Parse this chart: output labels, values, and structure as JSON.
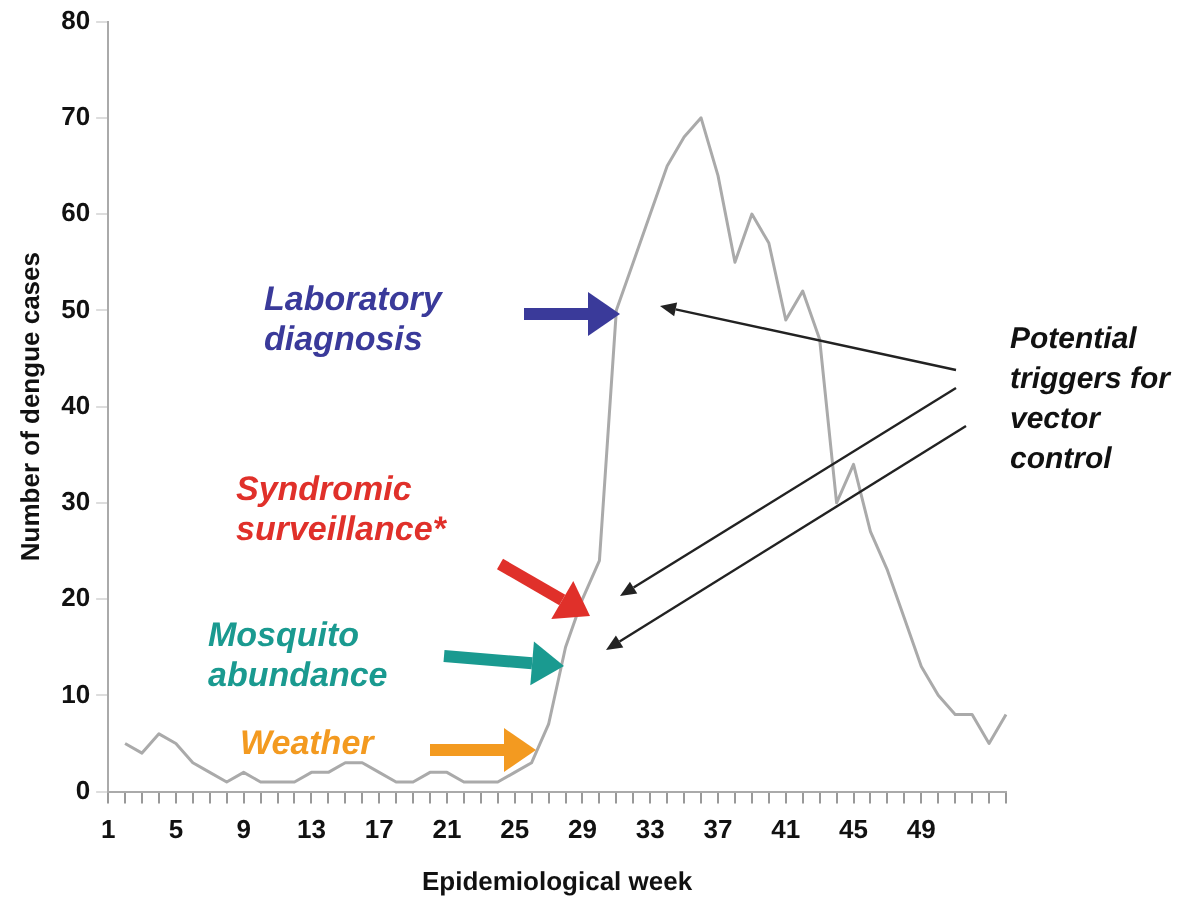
{
  "chart_data": {
    "type": "line",
    "xlabel": "Epidemiological week",
    "ylabel": "Number of dengue cases",
    "categories": [
      "1",
      null,
      null,
      null,
      "5",
      null,
      null,
      null,
      "9",
      null,
      null,
      null,
      "13",
      null,
      null,
      null,
      "17",
      null,
      null,
      null,
      "21",
      null,
      null,
      null,
      "25",
      null,
      null,
      null,
      "29",
      null,
      null,
      null,
      "33",
      null,
      null,
      null,
      "37",
      null,
      null,
      null,
      "41",
      null,
      null,
      null,
      "45",
      null,
      null,
      null,
      "49",
      null,
      null,
      null,
      null,
      null
    ],
    "series": [
      {
        "color": "#aaaaaa",
        "values": [
          null,
          5,
          4,
          6,
          5,
          3,
          2,
          1,
          2,
          1,
          1,
          1,
          2,
          2,
          3,
          3,
          2,
          1,
          1,
          2,
          2,
          1,
          1,
          1,
          2,
          3,
          7,
          15,
          20,
          24,
          50,
          55,
          60,
          65,
          68,
          70,
          64,
          55,
          60,
          57,
          49,
          52,
          47,
          30,
          34,
          27,
          23,
          18,
          13,
          10,
          8,
          8,
          5,
          8
        ]
      }
    ],
    "ylim": [
      0,
      80
    ],
    "yticks": [
      0,
      10,
      20,
      30,
      40,
      50,
      60,
      70,
      80
    ],
    "grid": false,
    "legend": false,
    "marker": "none",
    "line_style": "solid",
    "annotations": [
      "Laboratory diagnosis",
      "Syndromic surveillance*",
      "Mosquito abundance",
      "Weather",
      "Potential triggers for vector control"
    ]
  }
}
